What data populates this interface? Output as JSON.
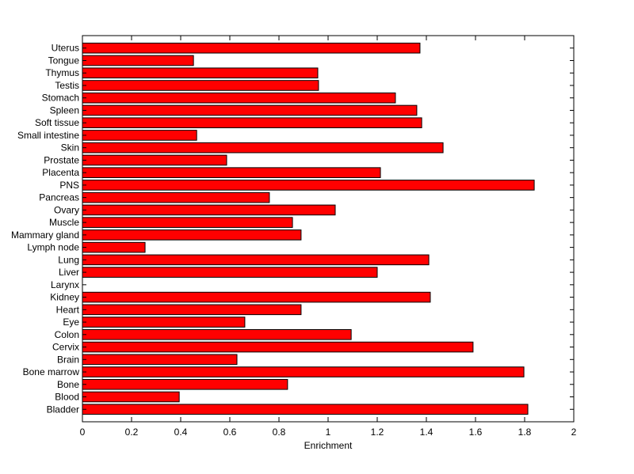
{
  "chart_data": {
    "type": "bar",
    "orientation": "horizontal",
    "title": "",
    "xlabel": "Enrichment",
    "ylabel": "",
    "xlim": [
      0,
      2
    ],
    "xticks": [
      "0",
      "0.2",
      "0.4",
      "0.6",
      "0.8",
      "1",
      "1.2",
      "1.4",
      "1.6",
      "1.8",
      "2"
    ],
    "grid": false,
    "bar_color": "#ff0000",
    "categories": [
      "Bladder",
      "Blood",
      "Bone",
      "Bone marrow",
      "Brain",
      "Cervix",
      "Colon",
      "Eye",
      "Heart",
      "Kidney",
      "Larynx",
      "Liver",
      "Lung",
      "Lymph node",
      "Mammary gland",
      "Muscle",
      "Ovary",
      "Pancreas",
      "PNS",
      "Placenta",
      "Prostate",
      "Skin",
      "Small intestine",
      "Soft tissue",
      "Spleen",
      "Stomach",
      "Testis",
      "Thymus",
      "Tongue",
      "Uterus"
    ],
    "values": [
      1.813,
      0.394,
      0.835,
      1.797,
      0.629,
      1.59,
      1.094,
      0.661,
      0.89,
      1.416,
      0,
      1.2,
      1.41,
      0.255,
      0.89,
      0.855,
      1.029,
      0.761,
      1.839,
      1.213,
      0.587,
      1.468,
      0.465,
      1.381,
      1.361,
      1.274,
      0.961,
      0.958,
      0.452,
      1.374
    ]
  }
}
